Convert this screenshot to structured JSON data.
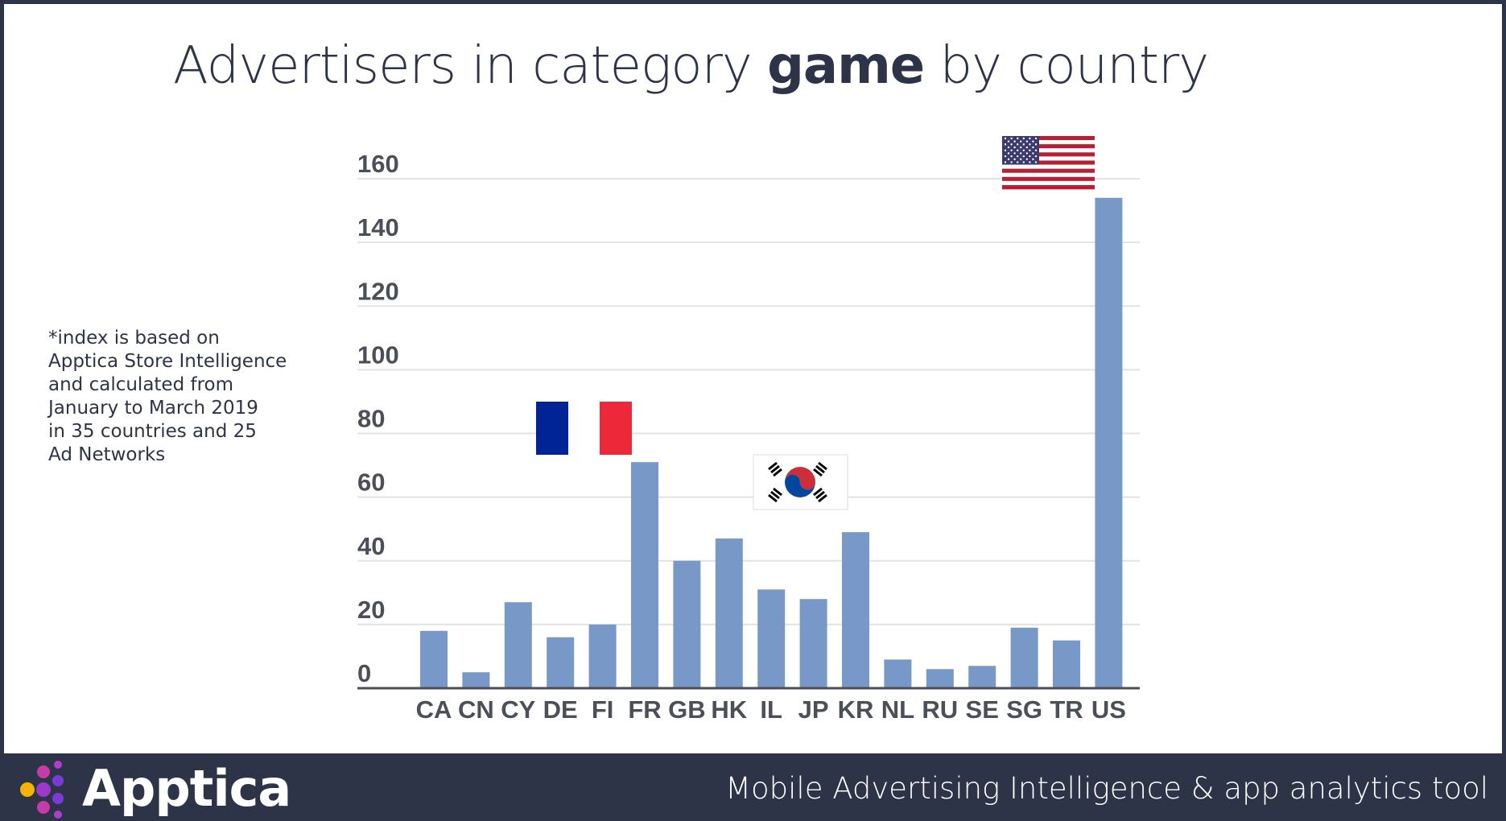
{
  "title": {
    "prefix": "Advertisers in category ",
    "bold": "game",
    "suffix": " by country"
  },
  "note": "*index is based on\nApptica Store Intelligence\nand calculated from\nJanuary to March 2019\nin 35 countries and 25\nAd Networks",
  "footer": {
    "brand": "Apptica",
    "tagline": "Mobile Advertising Intelligence & app analytics tool"
  },
  "colors": {
    "bar": "#7899c8",
    "panel": "#ffffff",
    "footer": "#2e3448",
    "grid": "#e3e3e3",
    "axis": "#4b4f58"
  },
  "icons": [
    "france-flag-icon",
    "south-korea-flag-icon",
    "usa-flag-icon",
    "apptica-logo-icon"
  ],
  "chart_data": {
    "type": "bar",
    "title": "Advertisers in category game by country",
    "categories": [
      "CA",
      "CN",
      "CY",
      "DE",
      "FI",
      "FR",
      "GB",
      "HK",
      "IL",
      "JP",
      "KR",
      "NL",
      "RU",
      "SE",
      "SG",
      "TR",
      "US"
    ],
    "values": [
      18,
      5,
      27,
      16,
      20,
      71,
      40,
      47,
      31,
      28,
      49,
      9,
      6,
      7,
      19,
      15,
      154
    ],
    "yticks": [
      0,
      20,
      40,
      60,
      80,
      100,
      120,
      140,
      160
    ],
    "ylim": [
      0,
      160
    ],
    "grid": true,
    "legend": "none",
    "annotations": [
      {
        "category": "FR",
        "type": "flag",
        "icon": "france-flag-icon"
      },
      {
        "category": "KR",
        "type": "flag",
        "icon": "south-korea-flag-icon"
      },
      {
        "category": "US",
        "type": "flag",
        "icon": "usa-flag-icon"
      }
    ]
  }
}
